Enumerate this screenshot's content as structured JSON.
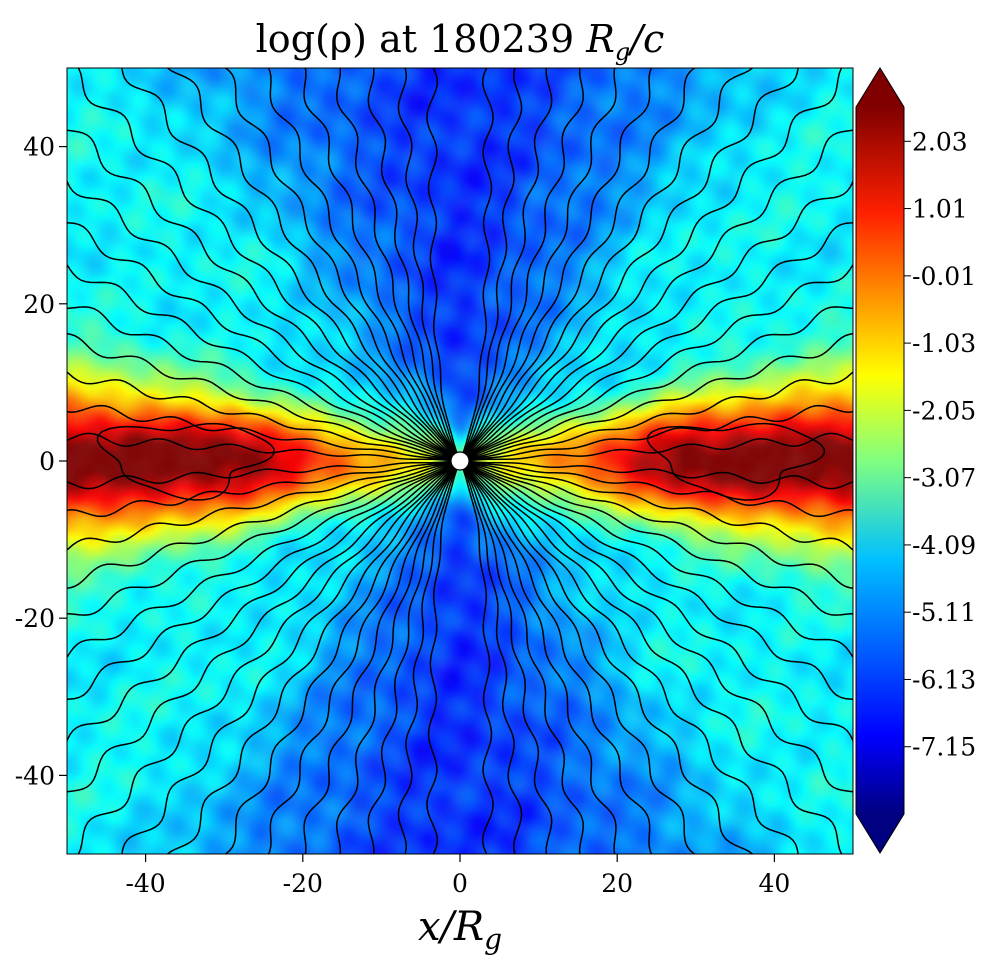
{
  "chart_data": {
    "type": "heatmap",
    "title": "log(ρ) at 180239 R_g/c",
    "title_parts": {
      "prefix": "log(ρ) at 180239 ",
      "var_main": "R",
      "var_sub": "g",
      "var_tail": "/c"
    },
    "xlabel": "x/R_g",
    "xlabel_parts": {
      "main": "x/R",
      "sub": "g"
    },
    "ylabel": "",
    "xlim": [
      -50,
      50
    ],
    "ylim": [
      -50,
      50
    ],
    "x_ticks": [
      -40,
      -20,
      0,
      20,
      40
    ],
    "x_tick_labels": [
      "-40",
      "-20",
      "0",
      "20",
      "40"
    ],
    "y_ticks": [
      40,
      20,
      0,
      -20,
      -40
    ],
    "y_tick_labels": [
      "40",
      "20",
      "0",
      "-20",
      "-40"
    ],
    "colormap": "jet",
    "colorbar": {
      "range": [
        -8.17,
        2.55
      ],
      "extend": "both",
      "ticks": [
        2.03,
        1.01,
        -0.01,
        -1.03,
        -2.05,
        -3.07,
        -4.09,
        -5.11,
        -6.13,
        -7.15
      ],
      "tick_labels": [
        "2.03",
        "1.01",
        "-0.01",
        "-1.03",
        "-2.05",
        "-3.07",
        "-4.09",
        "-5.11",
        "-6.13",
        "-7.15"
      ]
    },
    "structure": {
      "disk_midplane_log_rho": 2.0,
      "jet_axis_log_rho": -6.3,
      "outer_log_rho": -5.5,
      "disk_half_thickness": 5,
      "black_hole_radius": 1.2
    },
    "field_lines": "poloidal magnetic field lines converging on the black hole at the origin",
    "colors": {
      "dark_red": "#800000",
      "red": "#e60000",
      "orange": "#ff9a00",
      "yellow": "#d8e830",
      "green": "#8ee67a",
      "cyan": "#20c8f0",
      "blue": "#1464ff",
      "deep_blue": "#0a14c8",
      "navy": "#000080"
    }
  }
}
